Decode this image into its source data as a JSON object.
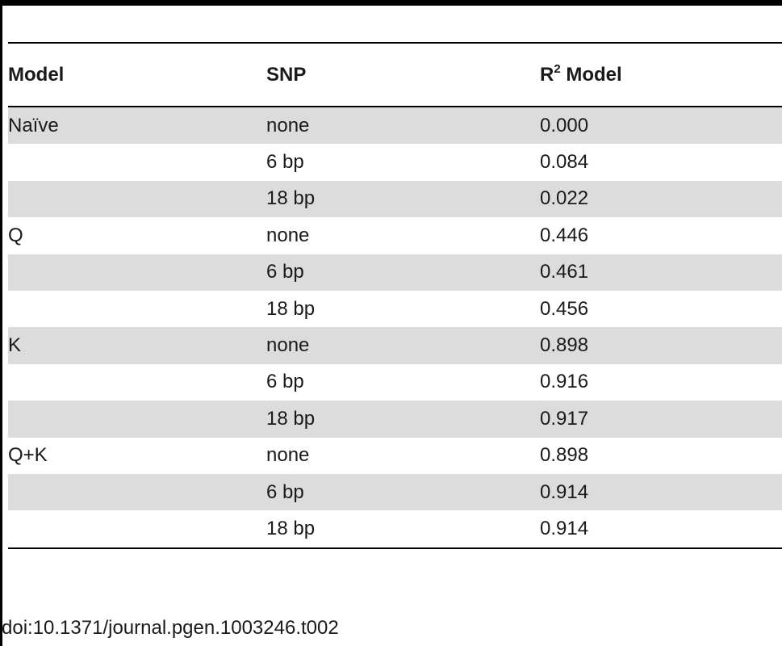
{
  "table": {
    "headers": {
      "model": "Model",
      "snp": "SNP",
      "r2_base": "R",
      "r2_sup": "2",
      "r2_rest": " Model"
    },
    "rows": [
      {
        "model": "Naïve",
        "snp": "none",
        "r2": "0.000"
      },
      {
        "model": "",
        "snp": "6 bp",
        "r2": "0.084"
      },
      {
        "model": "",
        "snp": "18 bp",
        "r2": "0.022"
      },
      {
        "model": "Q",
        "snp": "none",
        "r2": "0.446"
      },
      {
        "model": "",
        "snp": "6 bp",
        "r2": "0.461"
      },
      {
        "model": "",
        "snp": "18 bp",
        "r2": "0.456"
      },
      {
        "model": "K",
        "snp": "none",
        "r2": "0.898"
      },
      {
        "model": "",
        "snp": "6 bp",
        "r2": "0.916"
      },
      {
        "model": "",
        "snp": "18 bp",
        "r2": "0.917"
      },
      {
        "model": "Q+K",
        "snp": "none",
        "r2": "0.898"
      },
      {
        "model": "",
        "snp": "6 bp",
        "r2": "0.914"
      },
      {
        "model": "",
        "snp": "18 bp",
        "r2": "0.914"
      }
    ]
  },
  "footer": {
    "doi": "doi:10.1371/journal.pgen.1003246.t002"
  }
}
